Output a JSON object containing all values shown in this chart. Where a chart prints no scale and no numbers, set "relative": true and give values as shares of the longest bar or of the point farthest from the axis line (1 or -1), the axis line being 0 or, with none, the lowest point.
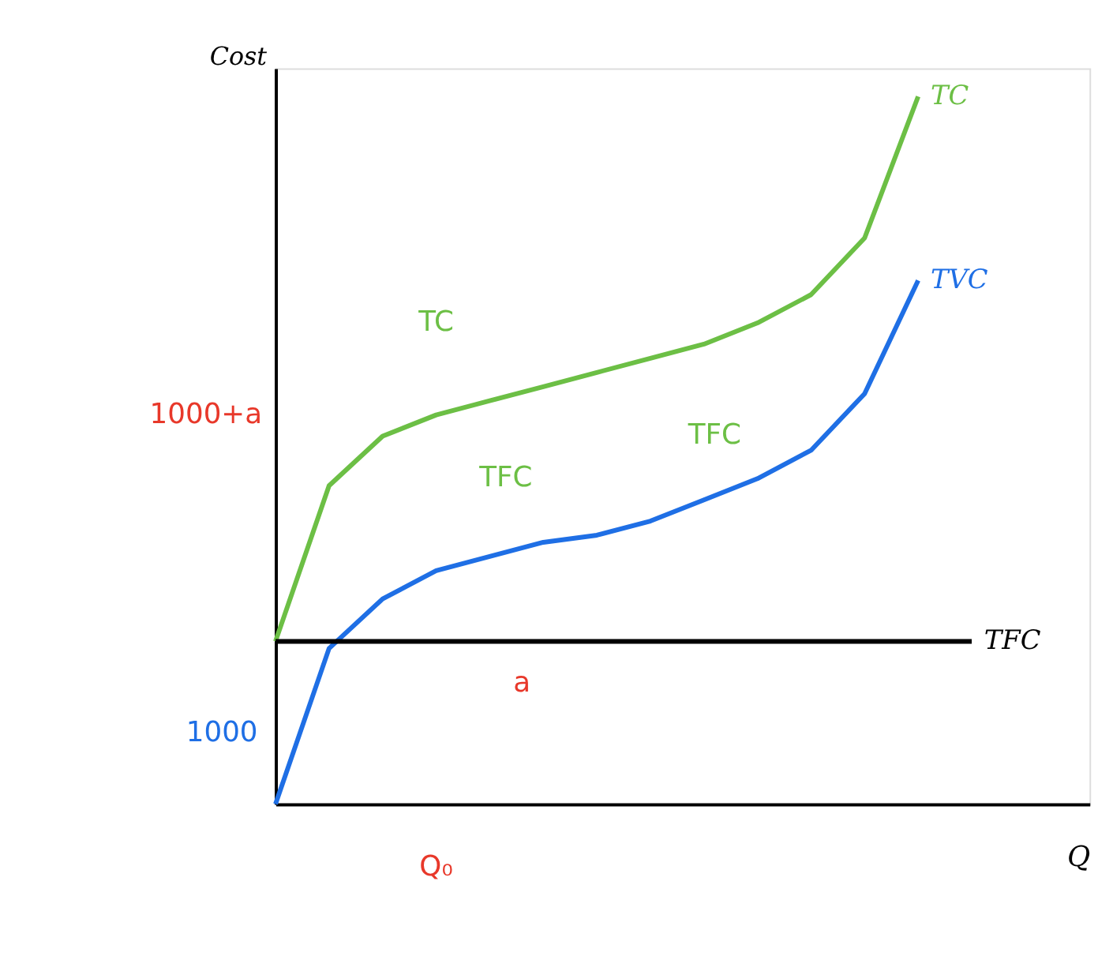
{
  "chart_data": {
    "type": "line",
    "relative": true,
    "xlabel": "Q",
    "ylabel": "Cost",
    "categories": [
      null,
      null,
      null,
      null,
      null,
      null,
      null,
      null,
      null,
      null,
      null,
      null,
      null,
      null
    ],
    "series": [
      {
        "name": "TC",
        "color": "#6cbf45",
        "values": [
          0.23,
          0.45,
          0.52,
          0.55,
          0.57,
          0.59,
          0.61,
          0.63,
          0.65,
          0.68,
          0.72,
          0.8,
          1,
          null
        ]
      },
      {
        "name": "TVC",
        "color": "#1f6fe5",
        "values": [
          0,
          0.22,
          0.29,
          0.33,
          0.35,
          0.37,
          0.38,
          0.4,
          0.43,
          0.46,
          0.5,
          0.58,
          0.74,
          null
        ]
      },
      {
        "name": "TFC",
        "color": "#000000",
        "values": [
          0.23,
          0.23,
          0.23,
          0.23,
          0.23,
          0.23,
          0.23,
          0.23,
          0.23,
          0.23,
          0.23,
          0.23,
          0.23,
          0.23
        ]
      }
    ],
    "annotations": [
      "TC",
      "TFC",
      "TFC",
      "1000+a",
      "1000",
      "a",
      "Q₀"
    ],
    "grid": false,
    "legend": false,
    "tick_labels": false
  }
}
